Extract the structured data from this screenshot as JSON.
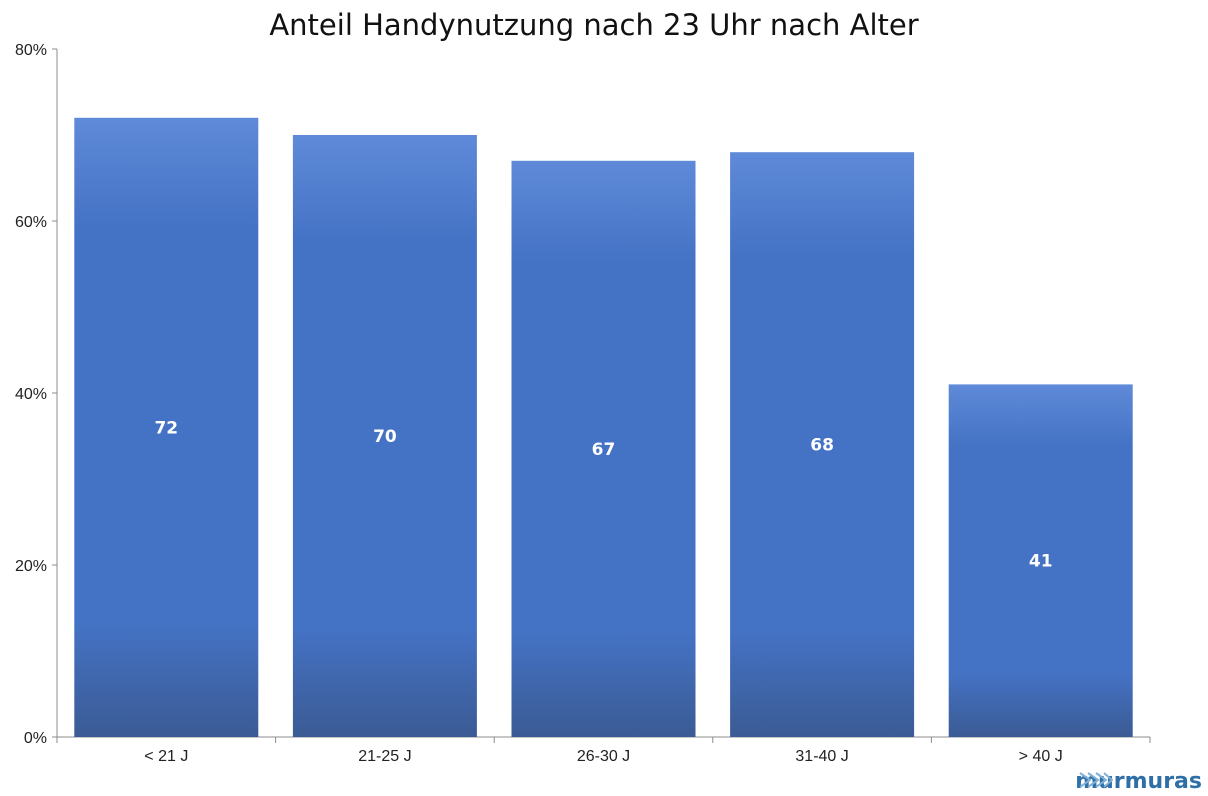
{
  "chart_data": {
    "type": "bar",
    "title": "Anteil Handynutzung nach 23 Uhr nach Alter",
    "xlabel": "",
    "ylabel": "",
    "categories": [
      "< 21 J",
      "21-25 J",
      "26-30 J",
      "31-40 J",
      "> 40 J"
    ],
    "values": [
      72,
      70,
      67,
      68,
      41
    ],
    "data_labels": [
      "72",
      "70",
      "67",
      "68",
      "41"
    ],
    "y_ticks": [
      "0%",
      "20%",
      "40%",
      "60%",
      "80%"
    ],
    "ylim": [
      0,
      80
    ],
    "grid": false,
    "legend": "none",
    "bar_color_top": "#5f8ad9",
    "bar_color_mid": "#4472c4",
    "bar_color_bottom": "#3b5b94"
  },
  "brand": {
    "name": "murmuras",
    "icon": "arrows-icon",
    "color": "#2f6fa8"
  }
}
